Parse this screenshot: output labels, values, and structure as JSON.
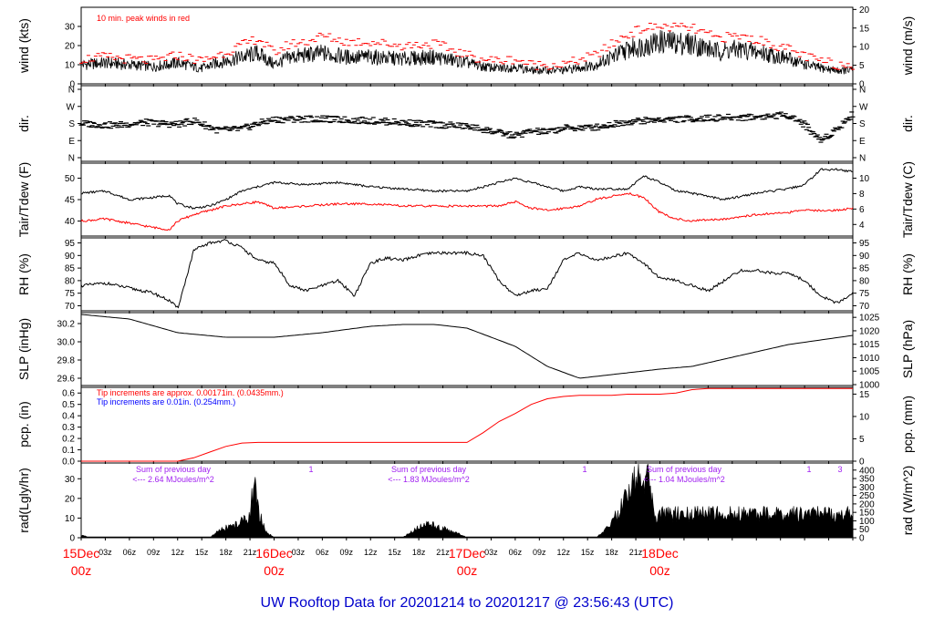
{
  "title": "UW Rooftop Data for 20201214  to  20201217 @ 23:56:43  (UTC)",
  "colors": {
    "black": "#000000",
    "red": "#ff0000",
    "blue": "#0000ff",
    "purple": "#a020f0",
    "title_blue": "#0000cc"
  },
  "chart_data": [
    {
      "type": "line",
      "panel": "wind",
      "ylabel_left": "wind (kts)",
      "ylabel_right": "wind (m/s)",
      "ylim": [
        0,
        40
      ],
      "yticks_left": [
        "0",
        "10",
        "20",
        "30"
      ],
      "yticks_right": [
        "0",
        "5",
        "10",
        "15",
        "20"
      ],
      "annotation": "10 min. peak winds in red",
      "series": [
        {
          "color": "black",
          "x_hours": [
            0,
            3,
            6,
            9,
            12,
            15,
            17,
            20,
            22,
            24,
            26,
            28,
            30,
            33,
            36,
            40,
            44,
            48,
            50,
            52,
            54,
            56,
            60,
            64,
            68,
            70,
            72,
            76,
            79,
            82,
            85,
            88,
            91,
            94,
            96
          ],
          "values": [
            10,
            11,
            10,
            9,
            11,
            8,
            11,
            14,
            16,
            10,
            14,
            15,
            16,
            14,
            14,
            13,
            14,
            11,
            9,
            8,
            9,
            7,
            7,
            10,
            18,
            20,
            22,
            21,
            17,
            18,
            16,
            13,
            9,
            7,
            7
          ]
        },
        {
          "color": "red",
          "x_hours": [
            0,
            3,
            6,
            9,
            12,
            15,
            17,
            20,
            22,
            24,
            26,
            28,
            30,
            33,
            36,
            40,
            44,
            48,
            50,
            52,
            54,
            56,
            60,
            64,
            68,
            70,
            72,
            76,
            79,
            82,
            85,
            88,
            91,
            94,
            96
          ],
          "values": [
            13,
            14,
            13,
            12,
            15,
            12,
            15,
            20,
            24,
            16,
            21,
            22,
            25,
            22,
            22,
            20,
            21,
            15,
            13,
            12,
            13,
            10,
            10,
            15,
            26,
            29,
            30,
            29,
            24,
            25,
            22,
            18,
            13,
            10,
            10
          ]
        }
      ]
    },
    {
      "type": "scatter",
      "panel": "direction",
      "ylabel_left": "dir.",
      "ylabel_right": "dir.",
      "yticks_left": [
        "N",
        "E",
        "S",
        "W",
        "N"
      ],
      "yticks_right": [
        "N",
        "E",
        "S",
        "W",
        "N"
      ],
      "ylim": [
        0,
        360
      ],
      "x_hours": [
        0,
        4,
        8,
        12,
        14,
        17,
        20,
        22,
        24,
        28,
        32,
        36,
        40,
        44,
        48,
        50,
        52,
        54,
        56,
        58,
        60,
        64,
        68,
        72,
        76,
        80,
        84,
        88,
        90,
        92,
        94,
        96
      ],
      "values": [
        180,
        170,
        185,
        175,
        195,
        145,
        150,
        180,
        200,
        205,
        200,
        195,
        185,
        175,
        165,
        150,
        130,
        115,
        140,
        135,
        155,
        160,
        190,
        200,
        205,
        210,
        215,
        225,
        175,
        90,
        150,
        230
      ]
    },
    {
      "type": "line",
      "panel": "temperature",
      "ylabel_left": "Tair/Tdew (F)",
      "ylabel_right": "Tair/Tdew (C)",
      "ylim": [
        36.5,
        53.5
      ],
      "yticks_left": [
        "40",
        "45",
        "50"
      ],
      "yticks_right": [
        "4",
        "6",
        "8",
        "10"
      ],
      "series": [
        {
          "name": "Tair",
          "color": "black",
          "x_hours": [
            0,
            3,
            6,
            9,
            11,
            12,
            14,
            16,
            18,
            20,
            22,
            24,
            28,
            32,
            36,
            40,
            44,
            48,
            52,
            54,
            56,
            58,
            60,
            62,
            64,
            68,
            70,
            72,
            74,
            76,
            80,
            84,
            88,
            90,
            92,
            94,
            96
          ],
          "values": [
            46.5,
            47,
            45,
            45.5,
            46,
            44,
            43,
            43.5,
            45,
            47,
            48,
            49,
            48.5,
            49,
            48,
            47.5,
            47,
            47,
            49,
            50,
            49,
            48,
            47,
            48,
            47.5,
            47.5,
            50.5,
            49,
            47,
            46.5,
            45,
            46.5,
            47.5,
            48.5,
            52,
            52,
            51.5
          ]
        },
        {
          "name": "Tdew",
          "color": "red",
          "x_hours": [
            0,
            3,
            6,
            9,
            11,
            12,
            14,
            16,
            18,
            20,
            22,
            24,
            28,
            32,
            36,
            40,
            44,
            48,
            52,
            54,
            56,
            58,
            60,
            62,
            64,
            68,
            70,
            72,
            74,
            76,
            80,
            84,
            88,
            90,
            92,
            94,
            96
          ],
          "values": [
            40,
            40.5,
            39.5,
            38.5,
            38,
            40,
            41.5,
            42.5,
            43.5,
            44,
            44.5,
            43,
            43.5,
            44,
            44,
            43.5,
            43.5,
            43.5,
            43.5,
            44.5,
            43,
            42.5,
            43,
            43.5,
            45,
            46.5,
            45.5,
            42,
            40.5,
            40,
            40.5,
            41.5,
            42,
            42.5,
            42.5,
            42.5,
            43
          ]
        }
      ]
    },
    {
      "type": "line",
      "panel": "humidity",
      "ylabel_left": "RH (%)",
      "ylabel_right": "RH (%)",
      "ylim": [
        68,
        97
      ],
      "yticks_left": [
        "70",
        "75",
        "80",
        "85",
        "90",
        "95"
      ],
      "yticks_right": [
        "70",
        "75",
        "80",
        "85",
        "90",
        "95"
      ],
      "x_hours": [
        0,
        3,
        6,
        9,
        11,
        12,
        13,
        14,
        16,
        18,
        20,
        22,
        24,
        26,
        28,
        30,
        32,
        34,
        36,
        38,
        40,
        42,
        44,
        48,
        50,
        52,
        54,
        56,
        58,
        60,
        62,
        64,
        68,
        70,
        72,
        74,
        76,
        78,
        80,
        82,
        84,
        86,
        88,
        90,
        92,
        94,
        96
      ],
      "values": [
        78,
        79,
        77,
        75,
        72,
        69,
        80,
        92,
        95,
        96,
        93,
        88,
        87,
        78,
        76,
        78,
        80,
        74,
        87,
        89,
        88,
        90,
        91,
        91,
        90,
        80,
        74,
        76,
        77,
        88,
        91,
        88,
        91,
        87,
        81,
        80,
        78,
        76,
        80,
        84,
        84,
        83,
        83,
        80,
        74,
        71,
        75
      ]
    },
    {
      "type": "line",
      "panel": "pressure",
      "ylabel_left": "SLP (inHg)",
      "ylabel_right": "SLP (hPa)",
      "ylim": [
        29.52,
        30.32
      ],
      "yticks_left": [
        "29.6",
        "29.8",
        "30.0",
        "30.2"
      ],
      "yticks_right": [
        "1000",
        "1005",
        "1010",
        "1015",
        "1020",
        "1025"
      ],
      "x_hours": [
        0,
        6,
        12,
        18,
        24,
        30,
        36,
        40,
        44,
        48,
        54,
        58,
        62,
        66,
        72,
        76,
        82,
        88,
        92,
        96
      ],
      "values": [
        30.3,
        30.25,
        30.1,
        30.05,
        30.05,
        30.1,
        30.17,
        30.19,
        30.19,
        30.15,
        29.95,
        29.73,
        29.6,
        29.64,
        29.7,
        29.73,
        29.85,
        29.97,
        30.02,
        30.07
      ]
    },
    {
      "type": "line",
      "panel": "precipitation",
      "ylabel_left": "pcp. (in)",
      "ylabel_right": "pcp. (mm)",
      "ylim": [
        0,
        0.65
      ],
      "yticks_left": [
        "0.0",
        "0.1",
        "0.2",
        "0.3",
        "0.4",
        "0.5",
        "0.6"
      ],
      "yticks_right": [
        "0",
        "5",
        "10",
        "15"
      ],
      "annotation_red": "Tip increments are approx. 0.00171in. (0.0435mm.)",
      "annotation_blue": "Tip increments are 0.01in. (0.254mm.)",
      "x_hours": [
        0,
        12,
        14,
        16,
        18,
        20,
        22,
        24,
        48,
        50,
        52,
        54,
        56,
        58,
        60,
        62,
        64,
        66,
        68,
        70,
        72,
        74,
        76,
        78,
        80,
        96
      ],
      "values": [
        0,
        0,
        0.03,
        0.08,
        0.13,
        0.16,
        0.165,
        0.165,
        0.165,
        0.25,
        0.35,
        0.42,
        0.5,
        0.55,
        0.57,
        0.58,
        0.58,
        0.58,
        0.59,
        0.59,
        0.59,
        0.6,
        0.63,
        0.64,
        0.64,
        0.64
      ]
    },
    {
      "type": "area",
      "panel": "radiation",
      "ylabel_left": "rad(Lgly/hr)",
      "ylabel_right": "rad (W/m^2)",
      "ylim": [
        0,
        38
      ],
      "yticks_left": [
        "0",
        "10",
        "20",
        "30"
      ],
      "yticks_right": [
        "0",
        "50",
        "100",
        "150",
        "200",
        "250",
        "300",
        "350",
        "400"
      ],
      "annotations": [
        {
          "text": "Sum of previous day",
          "line2": "<--- 2.64 MJoules/m^2"
        },
        {
          "text": "Sum of previous day",
          "line2": "<--- 1.83 MJoules/m^2"
        },
        {
          "text": "Sum of previous day",
          "line2": "<--- 1.04 MJoules/m^2"
        }
      ],
      "marker_labels": [
        "1",
        "1",
        "1",
        "3"
      ],
      "x_hours": [
        0,
        0.5,
        1,
        16,
        17,
        18,
        19,
        20,
        21,
        21.5,
        22,
        22.5,
        23,
        24,
        40,
        41,
        42,
        43,
        44,
        45,
        46,
        47,
        48,
        64,
        65,
        66,
        67,
        68,
        69,
        69.5,
        70,
        70.5,
        71,
        71.5,
        72
      ],
      "values": [
        1,
        1,
        0,
        0,
        3,
        5,
        6,
        8,
        12,
        28,
        14,
        8,
        3,
        0,
        0,
        3,
        5,
        7,
        6,
        5,
        3,
        2,
        0,
        0,
        3,
        8,
        14,
        22,
        30,
        38,
        26,
        32,
        20,
        10,
        12
      ]
    }
  ],
  "x_axis": {
    "ticks": [
      "03z",
      "06z",
      "09z",
      "12z",
      "15z",
      "18z",
      "21z",
      "03z",
      "06z",
      "09z",
      "12z",
      "15z",
      "18z",
      "21z",
      "03z",
      "06z",
      "09z",
      "12z",
      "15z",
      "18z",
      "21z"
    ],
    "day_labels": [
      {
        "date": "15Dec",
        "hour": "00z"
      },
      {
        "date": "16Dec",
        "hour": "00z"
      },
      {
        "date": "17Dec",
        "hour": "00z"
      },
      {
        "date": "18Dec",
        "hour": "00z"
      }
    ]
  }
}
